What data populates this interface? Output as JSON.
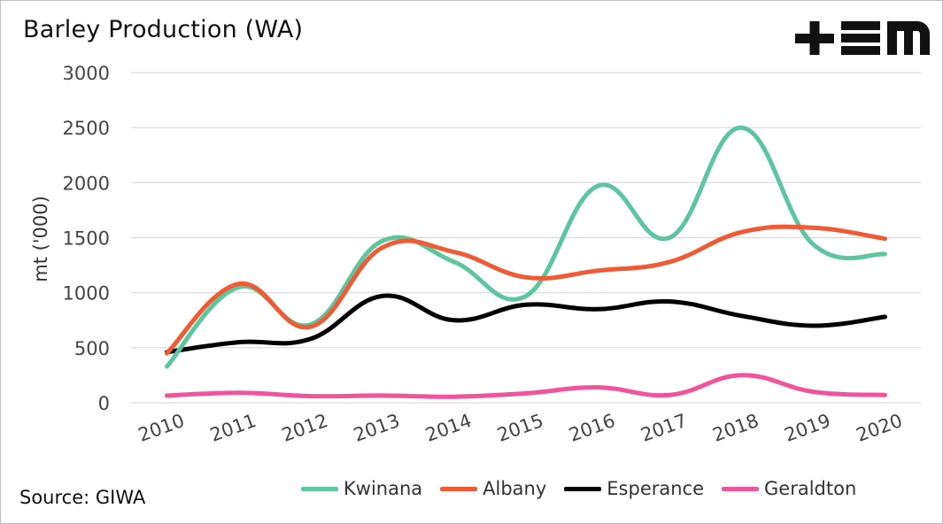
{
  "header": {
    "title": "Barley Production (WA)",
    "source": "Source: GIWA"
  },
  "logo": {
    "icon": "tem-logo-icon"
  },
  "chart_data": {
    "type": "line",
    "title": "Barley Production (WA)",
    "xlabel": "",
    "ylabel": "mt ('000)",
    "ylim": [
      0,
      3000
    ],
    "yticks": [
      0,
      500,
      1000,
      1500,
      2000,
      2500,
      3000
    ],
    "categories": [
      "2010",
      "2011",
      "2012",
      "2013",
      "2014",
      "2015",
      "2016",
      "2017",
      "2018",
      "2019",
      "2020"
    ],
    "grid": true,
    "legend": "bottom",
    "series": [
      {
        "name": "Kwinana",
        "color": "#5cc79f",
        "values": [
          330,
          1050,
          710,
          1470,
          1280,
          970,
          1970,
          1500,
          2500,
          1440,
          1350
        ]
      },
      {
        "name": "Albany",
        "color": "#f05a35",
        "values": [
          450,
          1080,
          690,
          1410,
          1370,
          1140,
          1200,
          1280,
          1550,
          1590,
          1490
        ]
      },
      {
        "name": "Esperance",
        "color": "#000000",
        "values": [
          460,
          550,
          580,
          970,
          750,
          890,
          850,
          920,
          790,
          700,
          780
        ]
      },
      {
        "name": "Geraldton",
        "color": "#f0559b",
        "values": [
          65,
          90,
          60,
          65,
          55,
          85,
          140,
          70,
          250,
          100,
          70
        ]
      }
    ]
  }
}
